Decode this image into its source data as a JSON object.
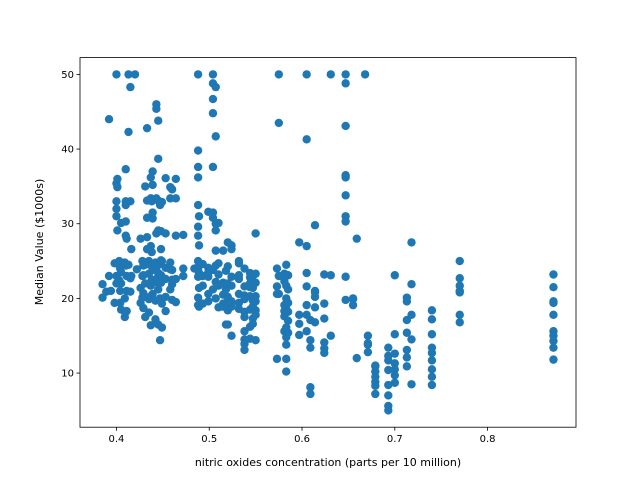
{
  "chart_data": {
    "type": "scatter",
    "xlabel": "nitric oxides concentration (parts per 10 million)",
    "ylabel": "Median Value ($1000s)",
    "color": "#1f77b4",
    "xlim": [
      0.3607,
      0.8953
    ],
    "ylim": [
      2.75,
      52.25
    ],
    "xticks": [
      0.4,
      0.5,
      0.6,
      0.7,
      0.8
    ],
    "yticks": [
      10,
      20,
      30,
      40,
      50
    ],
    "x": [
      0.385,
      0.385,
      0.389,
      0.392,
      0.392,
      0.394,
      0.398,
      0.398,
      0.4,
      0.4,
      0.4,
      0.4,
      0.4,
      0.4,
      0.4,
      0.4,
      0.401,
      0.401,
      0.401,
      0.403,
      0.403,
      0.404,
      0.404,
      0.404,
      0.405,
      0.405,
      0.405,
      0.405,
      0.409,
      0.409,
      0.409,
      0.409,
      0.41,
      0.41,
      0.41,
      0.41,
      0.41,
      0.41,
      0.411,
      0.411,
      0.411,
      0.411,
      0.413,
      0.413,
      0.413,
      0.415,
      0.415,
      0.415,
      0.415,
      0.416,
      0.416,
      0.42,
      0.422,
      0.426,
      0.426,
      0.426,
      0.428,
      0.428,
      0.428,
      0.429,
      0.429,
      0.429,
      0.429,
      0.431,
      0.431,
      0.431,
      0.431,
      0.433,
      0.433,
      0.433,
      0.433,
      0.433,
      0.435,
      0.435,
      0.435,
      0.435,
      0.437,
      0.437,
      0.437,
      0.437,
      0.437,
      0.437,
      0.438,
      0.438,
      0.438,
      0.438,
      0.439,
      0.439,
      0.439,
      0.439,
      0.439,
      0.439,
      0.442,
      0.442,
      0.442,
      0.442,
      0.443,
      0.443,
      0.443,
      0.443,
      0.443,
      0.443,
      0.445,
      0.445,
      0.445,
      0.445,
      0.445,
      0.445,
      0.445,
      0.447,
      0.447,
      0.447,
      0.447,
      0.448,
      0.448,
      0.448,
      0.448,
      0.448,
      0.449,
      0.449,
      0.449,
      0.449,
      0.449,
      0.453,
      0.453,
      0.453,
      0.453,
      0.453,
      0.453,
      0.458,
      0.458,
      0.458,
      0.458,
      0.458,
      0.46,
      0.46,
      0.46,
      0.46,
      0.46,
      0.464,
      0.464,
      0.464,
      0.464,
      0.464,
      0.472,
      0.472,
      0.472,
      0.484,
      0.488,
      0.488,
      0.488,
      0.488,
      0.488,
      0.488,
      0.488,
      0.488,
      0.488,
      0.488,
      0.488,
      0.488,
      0.489,
      0.489,
      0.489,
      0.489,
      0.489,
      0.489,
      0.493,
      0.493,
      0.493,
      0.493,
      0.499,
      0.499,
      0.499,
      0.499,
      0.499,
      0.499,
      0.504,
      0.504,
      0.504,
      0.504,
      0.504,
      0.504,
      0.504,
      0.504,
      0.504,
      0.507,
      0.507,
      0.507,
      0.507,
      0.507,
      0.507,
      0.507,
      0.507,
      0.51,
      0.51,
      0.51,
      0.51,
      0.51,
      0.515,
      0.515,
      0.515,
      0.515,
      0.515,
      0.518,
      0.518,
      0.518,
      0.518,
      0.52,
      0.52,
      0.52,
      0.52,
      0.52,
      0.52,
      0.524,
      0.524,
      0.524,
      0.524,
      0.524,
      0.524,
      0.524,
      0.532,
      0.532,
      0.532,
      0.532,
      0.532,
      0.532,
      0.532,
      0.538,
      0.538,
      0.538,
      0.538,
      0.538,
      0.538,
      0.538,
      0.538,
      0.538,
      0.538,
      0.544,
      0.544,
      0.544,
      0.544,
      0.544,
      0.544,
      0.544,
      0.544,
      0.547,
      0.547,
      0.547,
      0.547,
      0.547,
      0.547,
      0.55,
      0.55,
      0.55,
      0.55,
      0.55,
      0.55,
      0.55,
      0.55,
      0.573,
      0.573,
      0.573,
      0.573,
      0.575,
      0.575,
      0.575,
      0.575,
      0.581,
      0.581,
      0.581,
      0.581,
      0.581,
      0.581,
      0.583,
      0.583,
      0.583,
      0.583,
      0.583,
      0.583,
      0.583,
      0.583,
      0.583,
      0.585,
      0.585,
      0.585,
      0.585,
      0.585,
      0.585,
      0.597,
      0.597,
      0.597,
      0.597,
      0.605,
      0.605,
      0.605,
      0.605,
      0.605,
      0.605,
      0.605,
      0.605,
      0.609,
      0.609,
      0.609,
      0.609,
      0.609,
      0.614,
      0.614,
      0.614,
      0.614,
      0.614,
      0.614,
      0.624,
      0.624,
      0.624,
      0.624,
      0.624,
      0.624,
      0.631,
      0.631,
      0.631,
      0.647,
      0.647,
      0.647,
      0.647,
      0.647,
      0.647,
      0.647,
      0.647,
      0.647,
      0.647,
      0.655,
      0.655,
      0.655,
      0.659,
      0.659,
      0.668,
      0.671,
      0.671,
      0.671,
      0.671,
      0.679,
      0.679,
      0.679,
      0.679,
      0.679,
      0.679,
      0.679,
      0.693,
      0.693,
      0.693,
      0.693,
      0.693,
      0.693,
      0.693,
      0.693,
      0.7,
      0.7,
      0.7,
      0.7,
      0.7,
      0.7,
      0.7,
      0.713,
      0.713,
      0.713,
      0.713,
      0.713,
      0.713,
      0.713,
      0.718,
      0.718,
      0.718,
      0.718,
      0.718,
      0.74,
      0.74,
      0.74,
      0.74,
      0.74,
      0.74,
      0.74,
      0.74,
      0.74,
      0.77,
      0.77,
      0.77,
      0.77,
      0.77,
      0.77,
      0.77,
      0.871,
      0.871,
      0.871,
      0.871,
      0.871,
      0.871,
      0.871,
      0.871,
      0.871,
      0.871
    ],
    "y": [
      21.9,
      20.1,
      20.9,
      44,
      23,
      21,
      19.4,
      24.7,
      50,
      31,
      33,
      35.4,
      32,
      23,
      24.7,
      22,
      29.1,
      34.9,
      36,
      22.4,
      25,
      24,
      21,
      19.4,
      18.5,
      23.5,
      30.1,
      22,
      17.5,
      18.2,
      20,
      24.8,
      37.3,
      33,
      28.4,
      32.5,
      24.4,
      30.3,
      28,
      23,
      21,
      18.3,
      50,
      42.3,
      24.5,
      48.3,
      33,
      22.7,
      20.9,
      26.6,
      23,
      50,
      23.9,
      21.4,
      28,
      19.4,
      25,
      23,
      20.1,
      23.1,
      20.7,
      24.4,
      18.7,
      35,
      24.5,
      17.5,
      22,
      42.8,
      30.8,
      33.1,
      28.2,
      26.6,
      23.3,
      25,
      18.1,
      19.9,
      33.4,
      36.2,
      27,
      21.7,
      20.3,
      16.4,
      33,
      26.2,
      24.3,
      22.5,
      35.2,
      30.7,
      37,
      31.5,
      23.8,
      20.6,
      24.8,
      22.2,
      19.7,
      17.2,
      45.4,
      46,
      33.4,
      28.7,
      24.1,
      22.6,
      43.8,
      38.7,
      33.1,
      29.1,
      23.4,
      21.2,
      16.5,
      32.5,
      24.6,
      20,
      14.4,
      29,
      26.6,
      25.1,
      23.1,
      22.1,
      32.9,
      25,
      22.9,
      16.1,
      19.3,
      36.1,
      28.7,
      24.1,
      22.6,
      18.3,
      20.2,
      33.4,
      34.9,
      24.8,
      23.9,
      21.2,
      34.6,
      23.8,
      21.9,
      19.8,
      22.5,
      28.4,
      36,
      33.4,
      22.6,
      19.5,
      24,
      28.5,
      23,
      24,
      50,
      37.6,
      39.8,
      36.2,
      32.5,
      29.6,
      28.4,
      25,
      23.9,
      22.9,
      20.1,
      19.1,
      31,
      27.1,
      24.4,
      21.4,
      18.9,
      23.4,
      24.6,
      21.7,
      19.3,
      23,
      31.6,
      24.1,
      22.9,
      20.6,
      19.6,
      23.5,
      50,
      48.8,
      46.7,
      44.8,
      37.6,
      31.5,
      30.8,
      23.8,
      21.2,
      48.3,
      41.7,
      29.1,
      30,
      26.4,
      24.4,
      22.2,
      20,
      30.1,
      23.2,
      24.7,
      18.8,
      21.7,
      26.4,
      20.5,
      19.3,
      22.1,
      18.9,
      21.2,
      19.4,
      23.7,
      16.5,
      27.5,
      24.3,
      22,
      20.2,
      16.5,
      18.4,
      27.1,
      26.6,
      22.9,
      21.7,
      18.9,
      15,
      19.6,
      25,
      22.6,
      20.6,
      19.4,
      18.6,
      24.7,
      23.1,
      24,
      21.6,
      20.4,
      18.2,
      15.6,
      14.5,
      13.9,
      13.1,
      17.5,
      19.9,
      22.8,
      20.3,
      18.5,
      16.2,
      14.6,
      22,
      23.4,
      21.5,
      18.9,
      19.7,
      23,
      21.4,
      17.3,
      16.6,
      28.7,
      23.3,
      22.1,
      20.3,
      19.6,
      17.8,
      14.4,
      18.4,
      24,
      21.6,
      20.6,
      11.9,
      50,
      43.5,
      20.6,
      23,
      22.3,
      23.3,
      19.1,
      17.6,
      15.6,
      18.3,
      24.5,
      21.7,
      20,
      18.6,
      16.1,
      14.8,
      13.8,
      11.9,
      10.2,
      23.1,
      21.2,
      19.4,
      18.2,
      17,
      15.4,
      27.5,
      17.8,
      16.6,
      15.1,
      50,
      41.3,
      27,
      23.4,
      21.6,
      19.1,
      17.8,
      15.6,
      14.4,
      13.4,
      7.2,
      8.1,
      17.1,
      29.8,
      20.8,
      20.2,
      18.8,
      21,
      16.8,
      23.2,
      19.3,
      17.3,
      14.1,
      13.3,
      12.7,
      50,
      23.1,
      15,
      50,
      48.8,
      43.1,
      36.5,
      33.8,
      31,
      30.3,
      36.2,
      22.9,
      19.8,
      19.1,
      20,
      19.9,
      28,
      12,
      50,
      13.8,
      15,
      12.8,
      14,
      10.2,
      10.9,
      8.8,
      8.3,
      7.2,
      9.5,
      11,
      13.4,
      12.3,
      11.7,
      10.4,
      8.4,
      7,
      5,
      5.6,
      23.1,
      15.2,
      12.6,
      11.3,
      10.5,
      9.7,
      8.7,
      20.1,
      19.6,
      17.1,
      15.4,
      13.1,
      12.1,
      10.9,
      27.5,
      21.9,
      17.8,
      14.5,
      8.5,
      18.4,
      17.2,
      15.2,
      13.4,
      12.7,
      11.7,
      10.5,
      9.5,
      8.4,
      25,
      22.7,
      21.7,
      20.8,
      17.8,
      16.8,
      21,
      23.2,
      21.5,
      19.6,
      19.4,
      17.8,
      15.6,
      15,
      14.3,
      13.4,
      11.8
    ]
  }
}
